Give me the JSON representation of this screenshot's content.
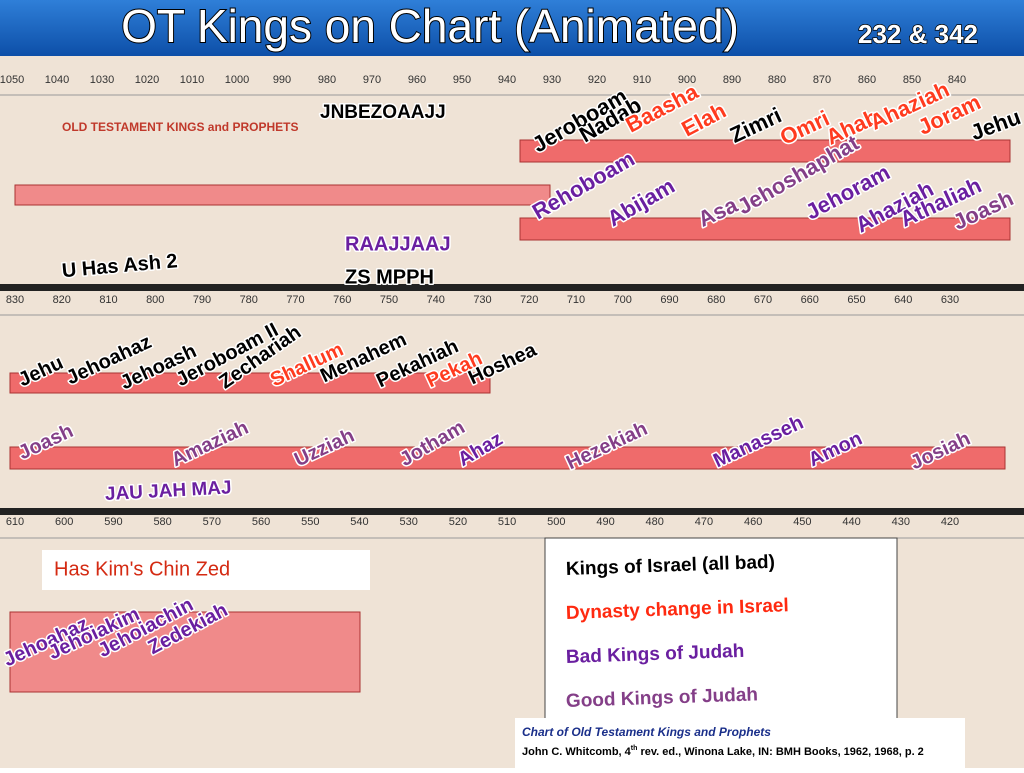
{
  "header": {
    "title": "OT Kings on Chart (Animated)",
    "reference": "232 & 342"
  },
  "chart_title": "OLD TESTAMENT KINGS and PROPHETS",
  "timeline_rows": [
    [
      1050,
      1040,
      1030,
      1020,
      1010,
      1000,
      990,
      980,
      970,
      960,
      950,
      940,
      930,
      920,
      910,
      900,
      890,
      880,
      870,
      860,
      850,
      840
    ],
    [
      830,
      820,
      810,
      800,
      790,
      780,
      770,
      760,
      750,
      740,
      730,
      720,
      710,
      700,
      690,
      680,
      670,
      660,
      650,
      640,
      630
    ],
    [
      610,
      600,
      590,
      580,
      570,
      560,
      550,
      540,
      530,
      520,
      510,
      500,
      490,
      480,
      470,
      460,
      450,
      440,
      430,
      420
    ]
  ],
  "labels": [
    "JNBEZOAAJJ",
    "Jeroboam",
    "Nadab",
    "Baasha",
    "Elah",
    "Zimri",
    "Omri",
    "Ahab",
    "Ahaziah",
    "Joram",
    "Jehu",
    "Rehoboam",
    "Abijam",
    "Asa",
    "Jehoshaphat",
    "Jehoram",
    "Ahaziah",
    "Athaliah",
    "Joash",
    "RAAJJAAJ",
    "ZS MPPH",
    "U Has Ash 2",
    "Jehu",
    "Jehoahaz",
    "Jehoash",
    "Jeroboam II",
    "Zechariah",
    "Shallum",
    "Menahem",
    "Pekahiah",
    "Pekah",
    "Hoshea",
    "Joash",
    "Amaziah",
    "Uzziah",
    "Jotham",
    "Ahaz",
    "Hezekiah",
    "Manasseh",
    "Amon",
    "Josiah",
    "JAU JAH MAJ",
    "Jehoahaz",
    "Jehoiakim",
    "Jehoiachin",
    "Zedekiah"
  ],
  "mnemonic_box": "Has Kim's Chin  Zed",
  "legend": {
    "items": [
      "Kings of Israel (all bad)",
      "Dynasty change in Israel",
      "Bad Kings of Judah",
      "Good Kings of Judah"
    ]
  },
  "caption": {
    "title": "Chart of Old Testament Kings and Prophets",
    "citation": [
      "John C. Whitcomb, 4",
      "th",
      " rev. ed., Winona Lake, IN: BMH Books, 1962, 1968, p. 2"
    ]
  }
}
